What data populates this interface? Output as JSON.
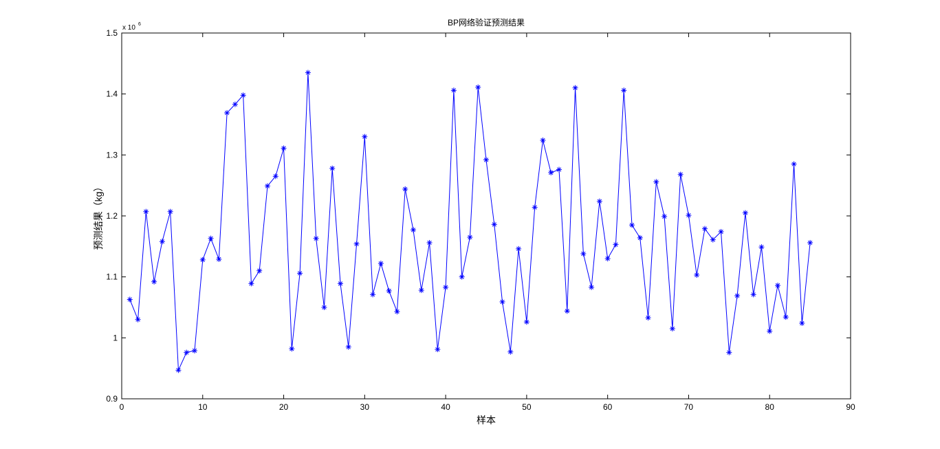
{
  "chart_data": {
    "type": "line",
    "title": "BP网络验证预测结果",
    "x_label": "样本",
    "y_label": "预测结果（kg）",
    "y_multiplier": {
      "base": "x 10",
      "exponent": "6"
    },
    "x": [
      1,
      2,
      3,
      4,
      5,
      6,
      7,
      8,
      9,
      10,
      11,
      12,
      13,
      14,
      15,
      16,
      17,
      18,
      19,
      20,
      21,
      22,
      23,
      24,
      25,
      26,
      27,
      28,
      29,
      30,
      31,
      32,
      33,
      34,
      35,
      36,
      37,
      38,
      39,
      40,
      41,
      42,
      43,
      44,
      45,
      46,
      47,
      48,
      49,
      50,
      51,
      52,
      53,
      54,
      55,
      56,
      57,
      58,
      59,
      60,
      61,
      62,
      63,
      64,
      65,
      66,
      67,
      68,
      69,
      70,
      71,
      72,
      73,
      74,
      75,
      76,
      77,
      78,
      79,
      80,
      81,
      82,
      83,
      84,
      85
    ],
    "series": [
      {
        "color": "#0000ff",
        "marker": "asterisk",
        "values": [
          1.063,
          1.03,
          1.207,
          1.092,
          1.158,
          1.207,
          0.947,
          0.976,
          0.979,
          1.128,
          1.163,
          1.129,
          1.369,
          1.383,
          1.398,
          1.089,
          1.11,
          1.249,
          1.265,
          1.311,
          0.982,
          1.106,
          1.435,
          1.163,
          1.05,
          1.278,
          1.089,
          0.985,
          1.154,
          1.33,
          1.071,
          1.122,
          1.077,
          1.043,
          1.244,
          1.177,
          1.078,
          1.156,
          0.981,
          1.083,
          1.406,
          1.1,
          1.165,
          1.411,
          1.292,
          1.186,
          1.059,
          0.977,
          1.146,
          1.026,
          1.214,
          1.324,
          1.271,
          1.276,
          1.044,
          1.41,
          1.138,
          1.083,
          1.224,
          1.13,
          1.153,
          1.406,
          1.185,
          1.164,
          1.033,
          1.256,
          1.199,
          1.015,
          1.268,
          1.201,
          1.103,
          1.179,
          1.161,
          1.174,
          0.976,
          1.069,
          1.205,
          1.071,
          1.149,
          1.011,
          1.086,
          1.034,
          1.285,
          1.024,
          1.156
        ]
      }
    ],
    "xlim": [
      0,
      90
    ],
    "xticks": [
      0,
      10,
      20,
      30,
      40,
      50,
      60,
      70,
      80,
      90
    ],
    "ylim": [
      0.9,
      1.5
    ],
    "yticks": [
      0.9,
      1,
      1.1,
      1.2,
      1.3,
      1.4,
      1.5
    ],
    "grid": false
  }
}
